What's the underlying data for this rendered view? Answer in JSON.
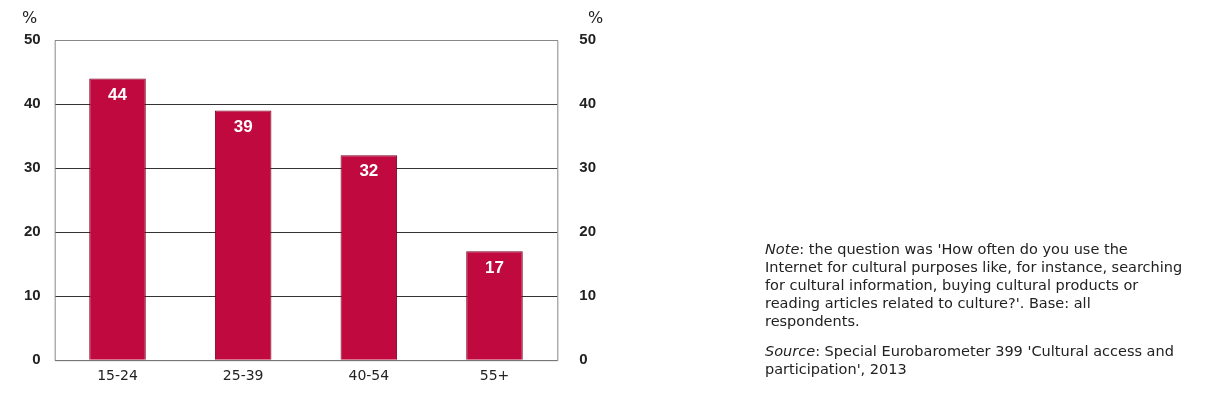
{
  "chart_data": {
    "type": "bar",
    "categories": [
      "15-24",
      "25-39",
      "40-54",
      "55+"
    ],
    "values": [
      44,
      39,
      32,
      17
    ],
    "color": "#c0093f",
    "ylabel": "%",
    "y2label": "%",
    "ylim": [
      0,
      50
    ],
    "yticks": [
      0,
      10,
      20,
      30,
      40,
      50
    ],
    "y2lim": [
      0,
      50
    ],
    "y2ticks": [
      0,
      10,
      20,
      30,
      40,
      50
    ],
    "grid": "y",
    "data_labels": true,
    "legend": false,
    "annotations": [
      "Note: the question was 'How often do you use the Internet for cultural purposes like, for instance, searching for cultural information, buying cultural products or reading articles related to culture?'. Base: all respondents.",
      "Source: Special Eurobarometer 399 'Cultural access and participation', 2013"
    ]
  }
}
